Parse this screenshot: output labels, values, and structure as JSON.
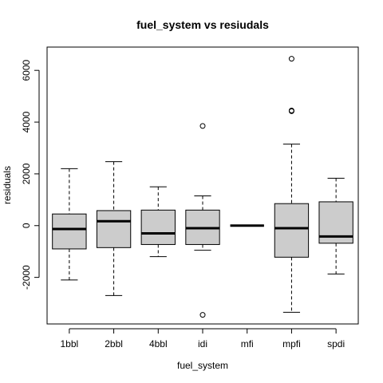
{
  "chart_data": {
    "type": "boxplot",
    "title": "fuel_system  vs resiudals",
    "xlabel": "fuel_system",
    "ylabel": "residuals",
    "ylim": [
      -3800,
      6900
    ],
    "yticks": [
      -2000,
      0,
      2000,
      4000,
      6000
    ],
    "grid": false,
    "box_color": "#cccccc",
    "categories": [
      "1bbl",
      "2bbl",
      "4bbl",
      "idi",
      "mfi",
      "mpfi",
      "spdi"
    ],
    "boxes": [
      {
        "name": "1bbl",
        "min": -2100,
        "q1": -900,
        "median": -130,
        "q3": 450,
        "max": 2200,
        "outliers": []
      },
      {
        "name": "2bbl",
        "min": -2700,
        "q1": -850,
        "median": 170,
        "q3": 580,
        "max": 2470,
        "outliers": []
      },
      {
        "name": "4bbl",
        "min": -1200,
        "q1": -730,
        "median": -300,
        "q3": 600,
        "max": 1500,
        "outliers": []
      },
      {
        "name": "idi",
        "min": -950,
        "q1": -730,
        "median": -100,
        "q3": 600,
        "max": 1150,
        "outliers": [
          3850,
          -3450
        ]
      },
      {
        "name": "mfi",
        "min": 0,
        "q1": 0,
        "median": 0,
        "q3": 0,
        "max": 0,
        "outliers": []
      },
      {
        "name": "mpfi",
        "min": -3350,
        "q1": -1220,
        "median": -100,
        "q3": 850,
        "max": 3150,
        "outliers": [
          4420,
          4450,
          6450
        ]
      },
      {
        "name": "spdi",
        "min": -1870,
        "q1": -680,
        "median": -420,
        "q3": 920,
        "max": 1830,
        "outliers": []
      }
    ]
  }
}
